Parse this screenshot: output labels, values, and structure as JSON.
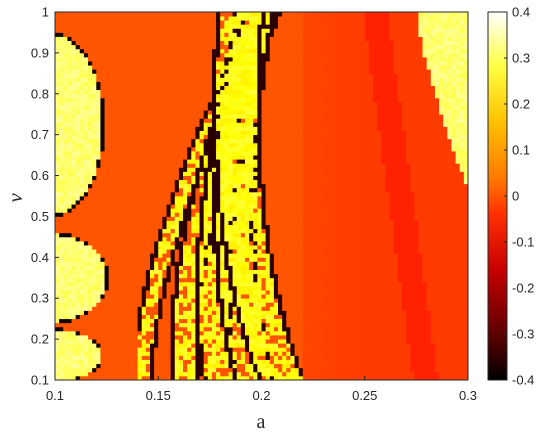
{
  "chart_data": {
    "type": "heatmap",
    "title": "",
    "xlabel": "a",
    "ylabel": "v",
    "xlim": [
      0.1,
      0.3
    ],
    "ylim": [
      0.1,
      1.0
    ],
    "x_ticks": [
      0.1,
      0.15,
      0.2,
      0.25,
      0.3
    ],
    "x_tick_labels": [
      "0.1",
      "0.15",
      "0.2",
      "0.25",
      "0.3"
    ],
    "y_ticks": [
      0.1,
      0.2,
      0.3,
      0.4,
      0.5,
      0.6,
      0.7,
      0.8,
      0.9,
      1.0
    ],
    "y_tick_labels": [
      "0.1",
      "0.2",
      "0.3",
      "0.4",
      "0.5",
      "0.6",
      "0.7",
      "0.8",
      "0.9",
      "1"
    ],
    "colorbar": {
      "range": [
        -0.4,
        0.4
      ],
      "ticks": [
        -0.4,
        -0.3,
        -0.2,
        -0.1,
        0,
        0.1,
        0.2,
        0.3,
        0.4
      ],
      "tick_labels": [
        "-0.4",
        "-0.3",
        "-0.2",
        "-0.1",
        "0",
        "0.1",
        "0.2",
        "0.3",
        "0.4"
      ],
      "colormap": "hot"
    },
    "grid": false,
    "background_level": 0.0,
    "regions": [
      {
        "kind": "blob",
        "level": 0.32,
        "a_range": [
          0.1,
          0.123
        ],
        "v_range": [
          0.52,
          0.93
        ]
      },
      {
        "kind": "blob",
        "level": 0.32,
        "a_range": [
          0.1,
          0.125
        ],
        "v_range": [
          0.25,
          0.45
        ]
      },
      {
        "kind": "blob",
        "level": 0.32,
        "a_range": [
          0.1,
          0.122
        ],
        "v_range": [
          0.1,
          0.22
        ]
      },
      {
        "kind": "bands",
        "level": 0.28,
        "a_range": [
          0.14,
          0.22
        ],
        "v_range": [
          0.1,
          1.0
        ]
      },
      {
        "kind": "blob",
        "level": 0.32,
        "a_range": [
          0.275,
          0.3
        ],
        "v_range": [
          0.5,
          1.0
        ]
      },
      {
        "kind": "gradient",
        "level": -0.03,
        "a_range": [
          0.22,
          0.3
        ],
        "v_range": [
          0.1,
          1.0
        ]
      },
      {
        "kind": "stripe",
        "level": -0.06,
        "a_range": [
          0.255,
          0.29
        ],
        "v_range": [
          0.1,
          1.0
        ]
      }
    ]
  }
}
